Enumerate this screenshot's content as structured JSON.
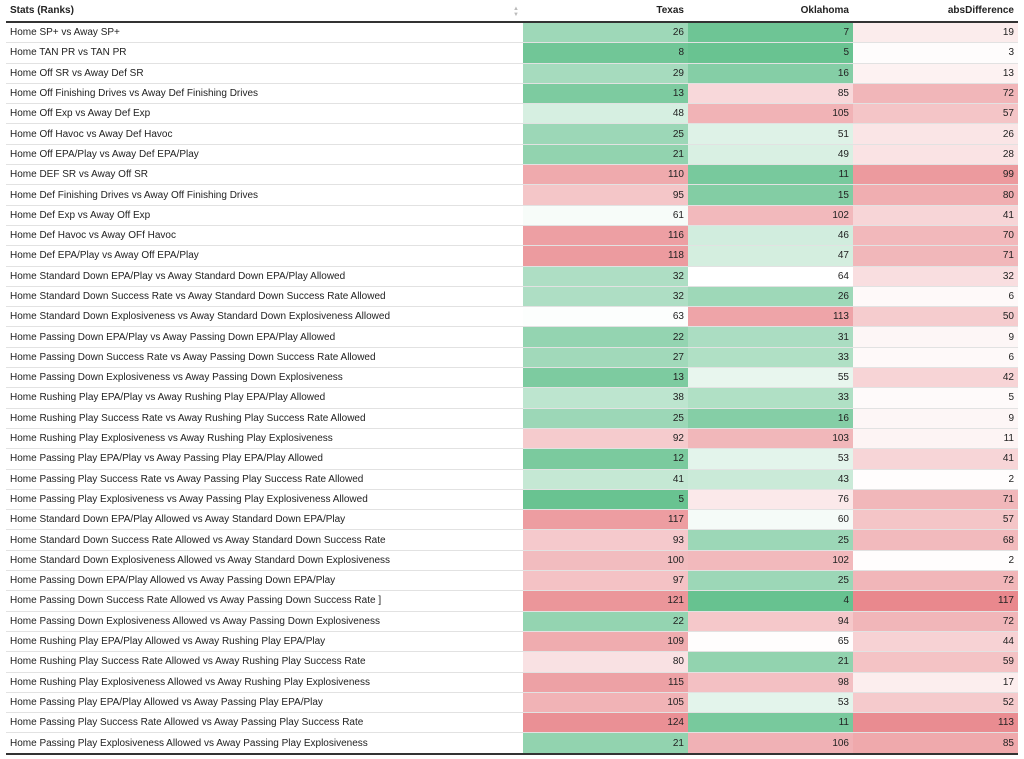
{
  "chart_data": {
    "type": "table",
    "columns": [
      "Stats (Ranks)",
      "Texas",
      "Oklahoma",
      "absDifference"
    ],
    "rows": [
      {
        "stat": "Home SP+ vs Away SP+",
        "texas": 26,
        "oklahoma": 7,
        "absDifference": 19
      },
      {
        "stat": "Home TAN PR vs TAN PR",
        "texas": 8,
        "oklahoma": 5,
        "absDifference": 3
      },
      {
        "stat": "Home Off SR vs Away Def SR",
        "texas": 29,
        "oklahoma": 16,
        "absDifference": 13
      },
      {
        "stat": "Home Off Finishing Drives vs Away Def Finishing Drives",
        "texas": 13,
        "oklahoma": 85,
        "absDifference": 72
      },
      {
        "stat": "Home Off Exp vs Away Def Exp",
        "texas": 48,
        "oklahoma": 105,
        "absDifference": 57
      },
      {
        "stat": "Home Off Havoc vs Away Def Havoc",
        "texas": 25,
        "oklahoma": 51,
        "absDifference": 26
      },
      {
        "stat": "Home Off EPA/Play vs Away Def EPA/Play",
        "texas": 21,
        "oklahoma": 49,
        "absDifference": 28
      },
      {
        "stat": "Home DEF SR vs Away Off SR",
        "texas": 110,
        "oklahoma": 11,
        "absDifference": 99
      },
      {
        "stat": "Home Def Finishing Drives vs Away Off Finishing Drives",
        "texas": 95,
        "oklahoma": 15,
        "absDifference": 80
      },
      {
        "stat": "Home Def Exp vs Away Off Exp",
        "texas": 61,
        "oklahoma": 102,
        "absDifference": 41
      },
      {
        "stat": "Home Def Havoc vs Away OFf Havoc",
        "texas": 116,
        "oklahoma": 46,
        "absDifference": 70
      },
      {
        "stat": "Home Def EPA/Play vs Away Off EPA/Play",
        "texas": 118,
        "oklahoma": 47,
        "absDifference": 71
      },
      {
        "stat": "Home Standard Down EPA/Play vs Away Standard Down EPA/Play Allowed",
        "texas": 32,
        "oklahoma": 64,
        "absDifference": 32
      },
      {
        "stat": "Home Standard Down Success Rate vs Away Standard Down Success Rate Allowed",
        "texas": 32,
        "oklahoma": 26,
        "absDifference": 6
      },
      {
        "stat": "Home Standard Down Explosiveness vs Away Standard Down Explosiveness Allowed",
        "texas": 63,
        "oklahoma": 113,
        "absDifference": 50
      },
      {
        "stat": "Home Passing Down EPA/Play vs Away Passing Down EPA/Play Allowed",
        "texas": 22,
        "oklahoma": 31,
        "absDifference": 9
      },
      {
        "stat": "Home Passing Down Success Rate vs Away Passing Down Success Rate Allowed",
        "texas": 27,
        "oklahoma": 33,
        "absDifference": 6
      },
      {
        "stat": "Home Passing Down Explosiveness vs Away Passing Down Explosiveness",
        "texas": 13,
        "oklahoma": 55,
        "absDifference": 42
      },
      {
        "stat": "Home Rushing Play EPA/Play vs Away Rushing Play EPA/Play Allowed",
        "texas": 38,
        "oklahoma": 33,
        "absDifference": 5
      },
      {
        "stat": "Home Rushing Play Success Rate vs Away Rushing Play Success Rate Allowed",
        "texas": 25,
        "oklahoma": 16,
        "absDifference": 9
      },
      {
        "stat": "Home Rushing Play Explosiveness vs Away Rushing Play Explosiveness",
        "texas": 92,
        "oklahoma": 103,
        "absDifference": 11
      },
      {
        "stat": "Home Passing Play EPA/Play vs Away Passing Play EPA/Play Allowed",
        "texas": 12,
        "oklahoma": 53,
        "absDifference": 41
      },
      {
        "stat": "Home Passing Play Success Rate vs Away Passing Play Success Rate Allowed",
        "texas": 41,
        "oklahoma": 43,
        "absDifference": 2
      },
      {
        "stat": "Home Passing Play Explosiveness vs Away Passing Play Explosiveness Allowed",
        "texas": 5,
        "oklahoma": 76,
        "absDifference": 71
      },
      {
        "stat": "Home Standard Down EPA/Play Allowed vs Away Standard Down EPA/Play",
        "texas": 117,
        "oklahoma": 60,
        "absDifference": 57
      },
      {
        "stat": "Home Standard Down Success Rate Allowed vs Away Standard Down Success Rate",
        "texas": 93,
        "oklahoma": 25,
        "absDifference": 68
      },
      {
        "stat": "Home Standard Down Explosiveness Allowed vs Away Standard Down Explosiveness",
        "texas": 100,
        "oklahoma": 102,
        "absDifference": 2
      },
      {
        "stat": "Home Passing Down EPA/Play Allowed vs Away Passing Down EPA/Play",
        "texas": 97,
        "oklahoma": 25,
        "absDifference": 72
      },
      {
        "stat": "Home Passing Down Success Rate Allowed vs Away Passing Down Success Rate ]",
        "texas": 121,
        "oklahoma": 4,
        "absDifference": 117
      },
      {
        "stat": "Home Passing Down Explosiveness Allowed vs Away Passing Down Explosiveness",
        "texas": 22,
        "oklahoma": 94,
        "absDifference": 72
      },
      {
        "stat": "Home Rushing Play EPA/Play Allowed vs Away Rushing Play EPA/Play",
        "texas": 109,
        "oklahoma": 65,
        "absDifference": 44
      },
      {
        "stat": "Home Rushing Play Success Rate Allowed vs Away Rushing Play Success Rate",
        "texas": 80,
        "oklahoma": 21,
        "absDifference": 59
      },
      {
        "stat": "Home Rushing Play Explosiveness Allowed vs Away Rushing Play Explosiveness",
        "texas": 115,
        "oklahoma": 98,
        "absDifference": 17
      },
      {
        "stat": "Home Passing Play EPA/Play Allowed vs Away Passing Play EPA/Play",
        "texas": 105,
        "oklahoma": 53,
        "absDifference": 52
      },
      {
        "stat": "Home Passing Play Success Rate Allowed vs Away Passing Play Success Rate",
        "texas": 124,
        "oklahoma": 11,
        "absDifference": 113
      },
      {
        "stat": "Home Passing Play Explosiveness Allowed vs Away Passing Play Explosiveness",
        "texas": 21,
        "oklahoma": 106,
        "absDifference": 85
      }
    ],
    "color_scale": {
      "low_color": "#5fbf8a",
      "mid_color": "#ffffff",
      "high_color": "#e8858a",
      "rank_domain": [
        1,
        130
      ]
    },
    "diff_color_scale": {
      "low_color": "#ffffff",
      "high_color": "#e8858a",
      "domain": [
        0,
        120
      ]
    }
  }
}
